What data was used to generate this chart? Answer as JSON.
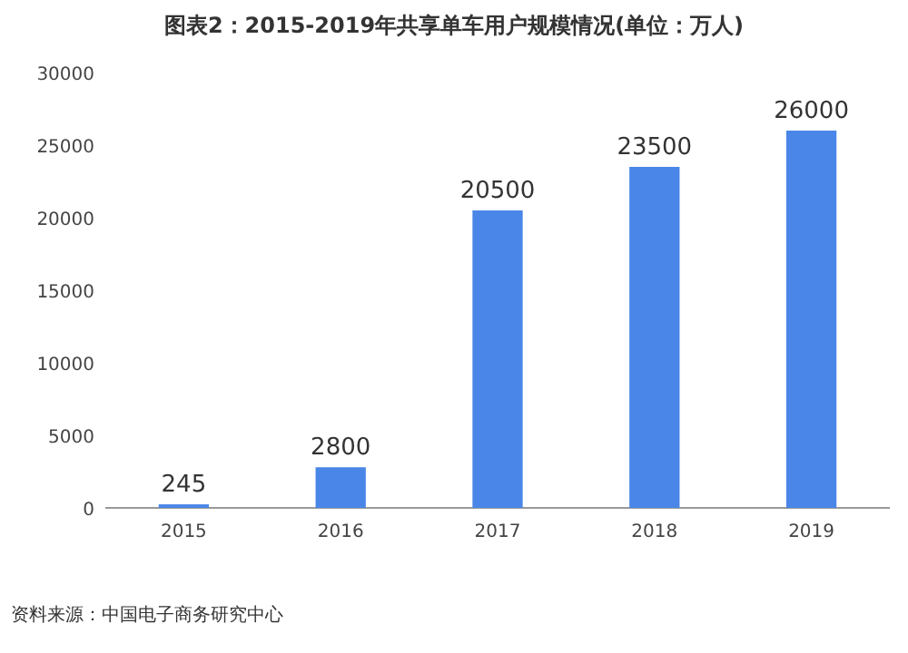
{
  "chart_data": {
    "type": "bar",
    "title": "图表2：2015-2019年共享单车用户规模情况(单位：万人)",
    "categories": [
      "2015",
      "2016",
      "2017",
      "2018",
      "2019"
    ],
    "values": [
      245,
      2800,
      20500,
      23500,
      26000
    ],
    "color": "#4a86e8",
    "ylim": [
      0,
      30000
    ],
    "yticks": [
      0,
      5000,
      10000,
      15000,
      20000,
      25000,
      30000
    ],
    "grid": false,
    "data_labels": true,
    "annotations": [
      "资料来源：中国电子商务研究中心"
    ]
  }
}
